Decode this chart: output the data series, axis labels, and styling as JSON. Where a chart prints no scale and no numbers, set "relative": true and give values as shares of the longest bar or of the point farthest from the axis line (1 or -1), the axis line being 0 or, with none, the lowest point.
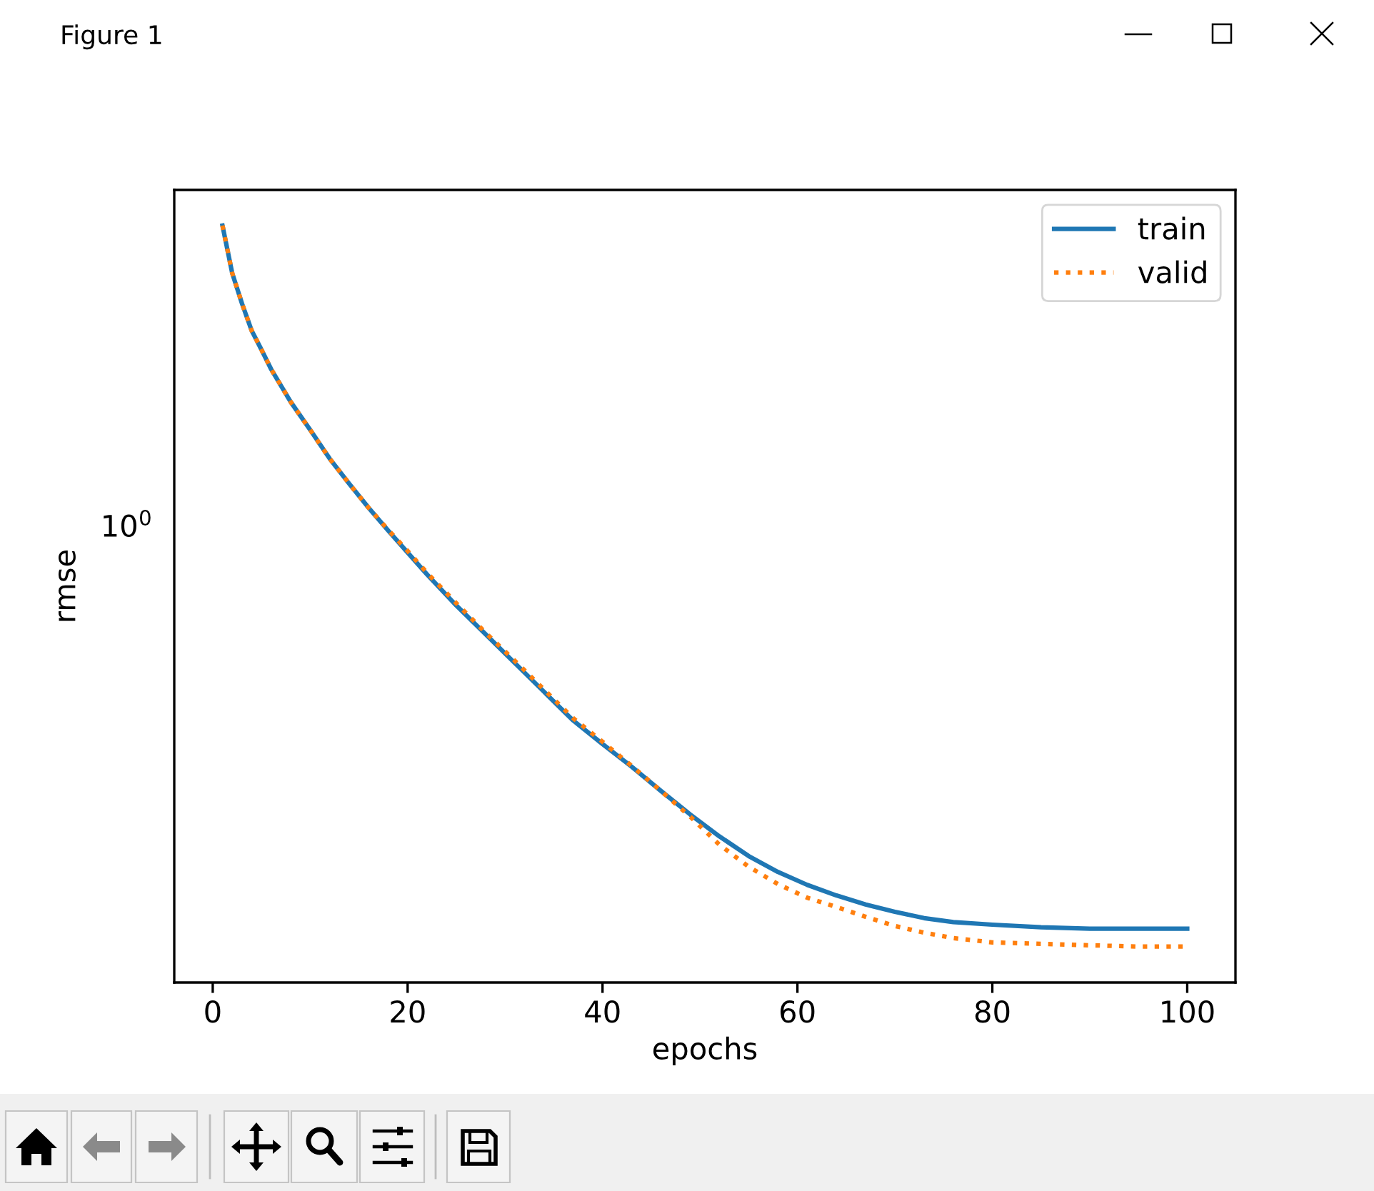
{
  "chart_data": {
    "type": "line",
    "xlabel": "epochs",
    "ylabel": "rmse",
    "annotations": [
      "Figure 1",
      "10$^{0}$"
    ],
    "relative": true,
    "legend": "top right",
    "xlim": [
      -3.95,
      104.95
    ],
    "xticks": [
      0,
      20,
      40,
      60,
      80,
      100
    ],
    "series": [
      {
        "name": "train",
        "color": "#1f77b4",
        "line_style": "solid",
        "x": [
          1,
          2,
          3,
          4,
          5,
          6,
          8,
          10,
          12,
          14,
          16,
          18,
          20,
          22,
          25,
          28,
          31,
          34,
          37,
          40,
          43,
          46,
          49,
          52,
          55,
          58,
          61,
          64,
          67,
          70,
          73,
          76,
          80,
          85,
          90,
          95,
          100
        ],
        "values": [
          1,
          0.937,
          0.897,
          0.861,
          0.836,
          0.81,
          0.767,
          0.73,
          0.692,
          0.659,
          0.627,
          0.597,
          0.568,
          0.539,
          0.498,
          0.46,
          0.422,
          0.384,
          0.346,
          0.315,
          0.285,
          0.253,
          0.222,
          0.193,
          0.167,
          0.146,
          0.129,
          0.115,
          0.103,
          0.0934,
          0.0851,
          0.0798,
          0.0764,
          0.073,
          0.0711,
          0.0711,
          0.0711
        ]
      },
      {
        "name": "valid",
        "color": "#ff7f0e",
        "line_style": "dotted",
        "x": [
          1,
          2,
          3,
          4,
          5,
          6,
          8,
          10,
          12,
          14,
          16,
          18,
          20,
          22,
          25,
          28,
          31,
          34,
          37,
          40,
          43,
          46,
          49,
          52,
          55,
          58,
          61,
          64,
          67,
          70,
          73,
          76,
          80,
          85,
          90,
          95,
          100
        ],
        "values": [
          1,
          0.937,
          0.897,
          0.861,
          0.836,
          0.81,
          0.767,
          0.73,
          0.692,
          0.659,
          0.627,
          0.598,
          0.57,
          0.541,
          0.501,
          0.462,
          0.425,
          0.387,
          0.349,
          0.318,
          0.286,
          0.253,
          0.219,
          0.182,
          0.153,
          0.13,
          0.112,
          0.0998,
          0.0868,
          0.0747,
          0.0658,
          0.0587,
          0.053,
          0.0511,
          0.0492,
          0.0474,
          0.0474
        ]
      }
    ]
  }
}
